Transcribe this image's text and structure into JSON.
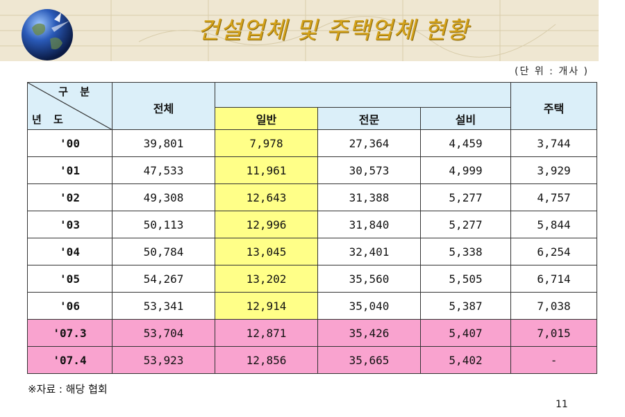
{
  "title": "건설업체 및 주택업체 현황",
  "unit": "(단 위 : 개사 )",
  "table": {
    "corner_top": "구 분",
    "corner_bottom": "년 도",
    "col_total": "전체",
    "col_general": "일반",
    "col_special": "전문",
    "col_facility": "설비",
    "col_housing": "주택",
    "rows": [
      {
        "year": "'00",
        "total": "39,801",
        "general": "7,978",
        "special": "27,364",
        "facility": "4,459",
        "housing": "3,744"
      },
      {
        "year": "'01",
        "total": "47,533",
        "general": "11,961",
        "special": "30,573",
        "facility": "4,999",
        "housing": "3,929"
      },
      {
        "year": "'02",
        "total": "49,308",
        "general": "12,643",
        "special": "31,388",
        "facility": "5,277",
        "housing": "4,757"
      },
      {
        "year": "'03",
        "total": "50,113",
        "general": "12,996",
        "special": "31,840",
        "facility": "5,277",
        "housing": "5,844"
      },
      {
        "year": "'04",
        "total": "50,784",
        "general": "13,045",
        "special": "32,401",
        "facility": "5,338",
        "housing": "6,254"
      },
      {
        "year": "'05",
        "total": "54,267",
        "general": "13,202",
        "special": "35,560",
        "facility": "5,505",
        "housing": "6,714"
      },
      {
        "year": "'06",
        "total": "53,341",
        "general": "12,914",
        "special": "35,040",
        "facility": "5,387",
        "housing": "7,038"
      },
      {
        "year": "'07.3",
        "total": "53,704",
        "general": "12,871",
        "special": "35,426",
        "facility": "5,407",
        "housing": "7,015"
      },
      {
        "year": "'07.4",
        "total": "53,923",
        "general": "12,856",
        "special": "35,665",
        "facility": "5,402",
        "housing": "-"
      }
    ]
  },
  "source": "※자료 : 해당 협회",
  "page_number": "11",
  "colors": {
    "header_bg": "#dbeff9",
    "general_col_bg": "#ffff88",
    "highlight_row_bg": "#f9a3cf",
    "title_color": "#d4a21a",
    "banner_bg": "#efe7d2"
  }
}
